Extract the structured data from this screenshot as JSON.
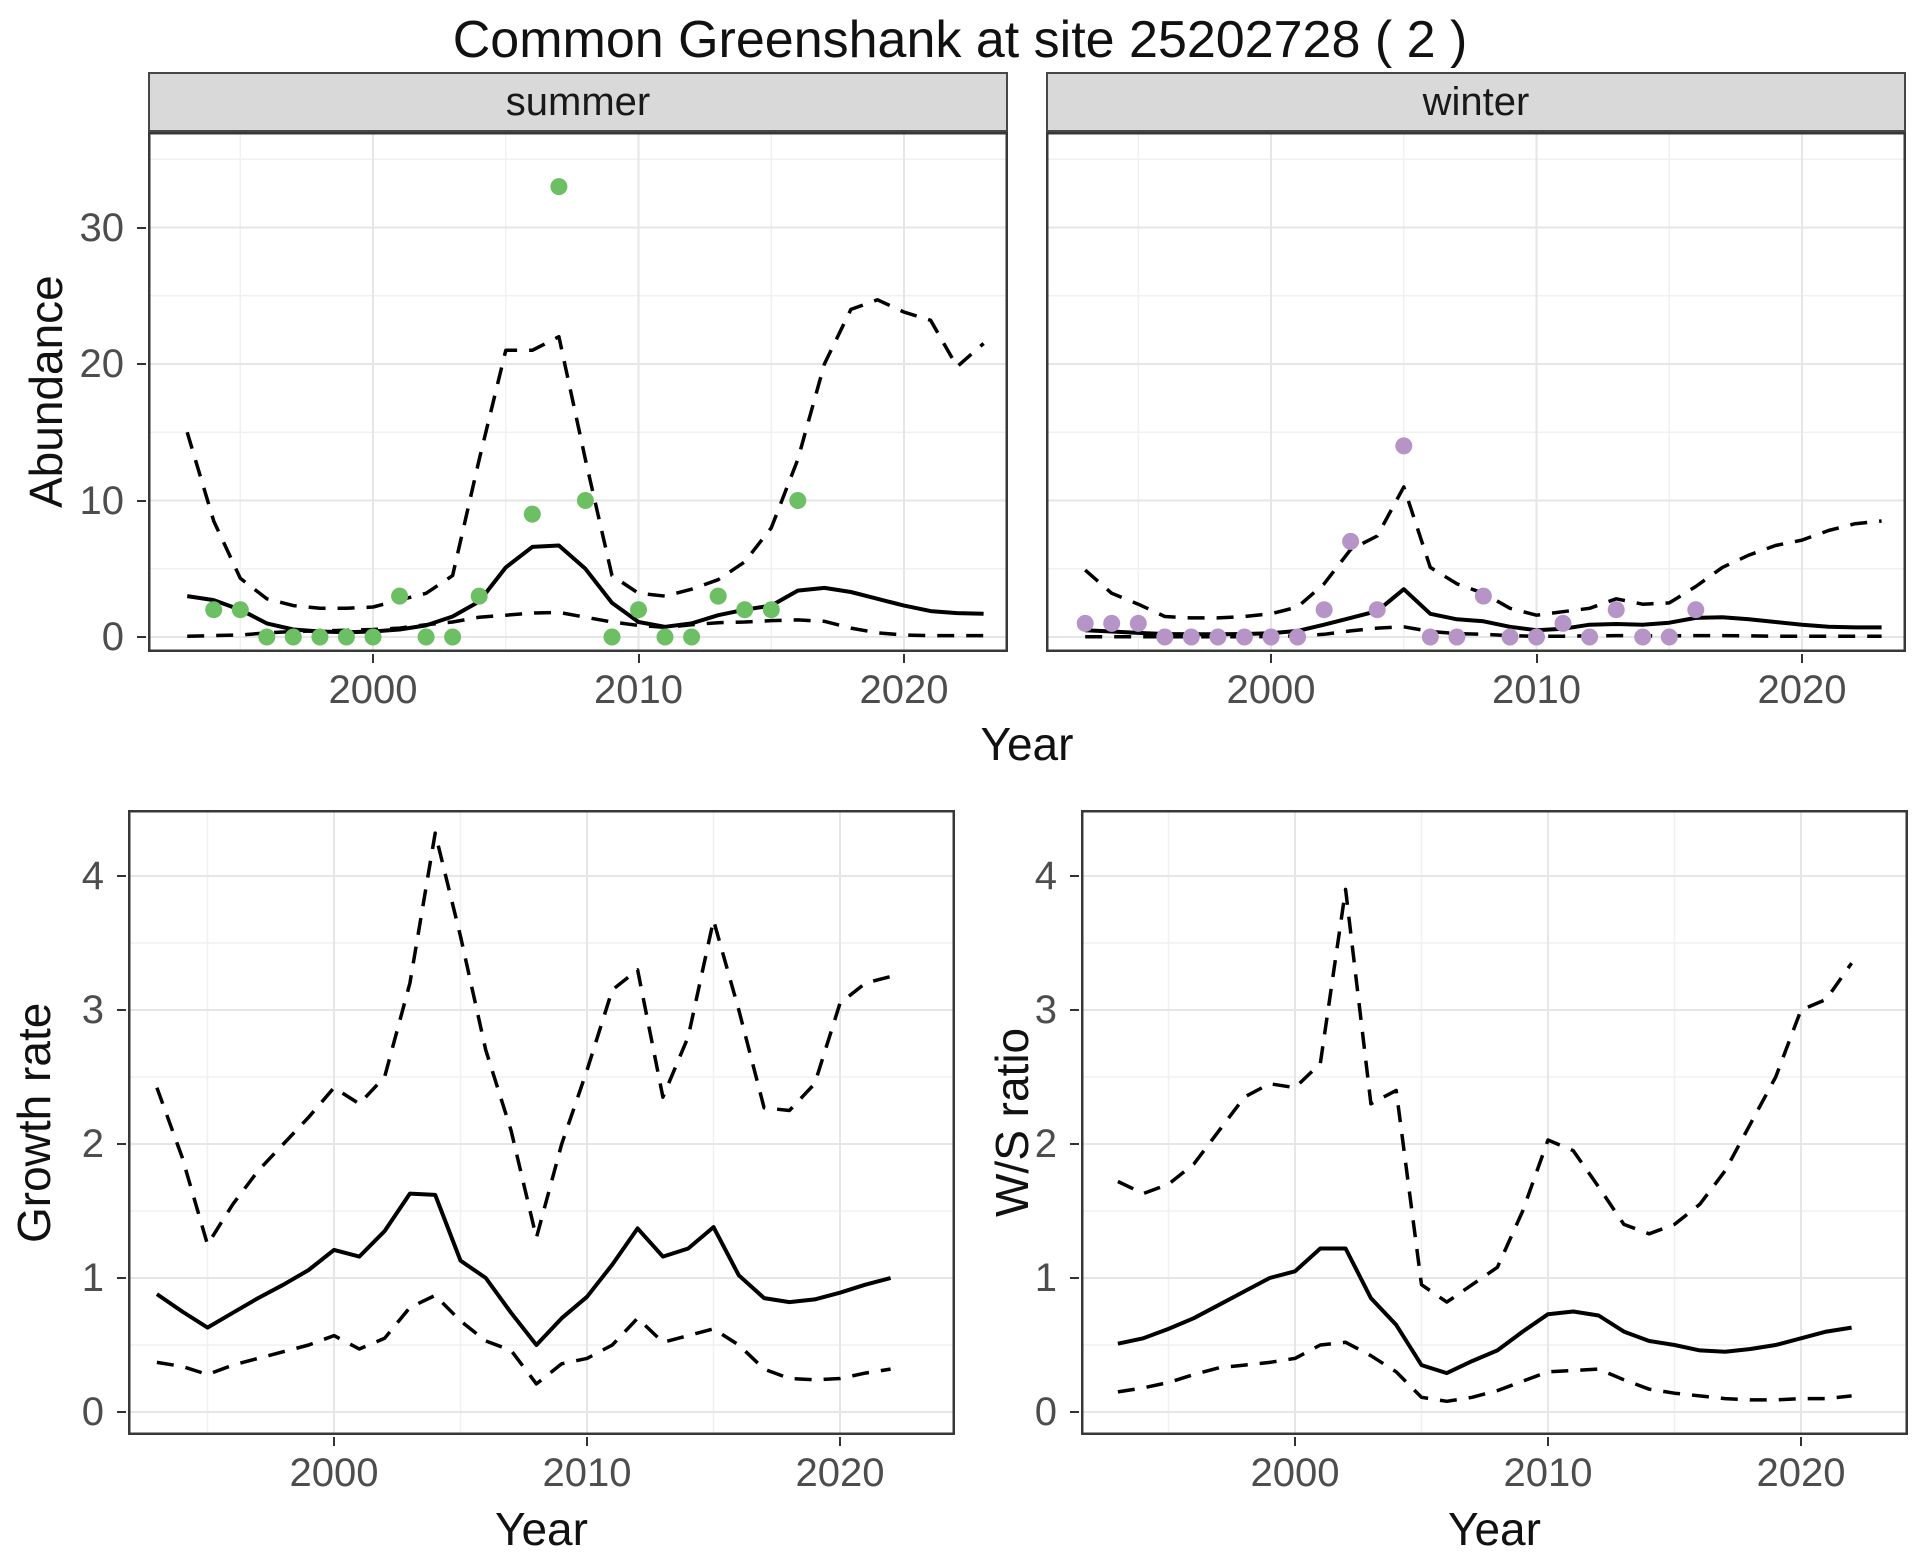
{
  "title": "Common Greenshank at site 25202728 ( 2 )",
  "top_figure": {
    "facets": [
      "summer",
      "winter"
    ],
    "ylabel": "Abundance",
    "xlabel": "Year"
  },
  "bottom_left_figure": {
    "ylabel": "Growth rate",
    "xlabel": "Year"
  },
  "bottom_right_figure": {
    "ylabel": "W/S ratio",
    "xlabel": "Year"
  },
  "colors": {
    "summer_points": "#6cbf63",
    "winter_points": "#b794c7",
    "line": "#000000",
    "strip_background": "#d9d9d9",
    "panel_border": "#383838",
    "grid_major": "#e6e6e6",
    "grid_minor": "#f0f0f0",
    "axis_text": "#4d4d4d"
  },
  "chart_data": [
    {
      "id": "abundance-summer",
      "type": "line",
      "facet_label": "summer",
      "xlabel": "Year",
      "ylabel": "Abundance",
      "x_ticks": [
        2000,
        2010,
        2020
      ],
      "x_minor": [
        1995,
        2005,
        2015
      ],
      "y_ticks": [
        0,
        10,
        20,
        30
      ],
      "y_minor": [
        5,
        15,
        25,
        35
      ],
      "xlim": [
        1991.5,
        2024.4
      ],
      "ylim": [
        -1.8,
        37
      ],
      "x": [
        1993,
        1994,
        1995,
        1996,
        1997,
        1998,
        1999,
        2000,
        2001,
        2002,
        2003,
        2004,
        2005,
        2006,
        2007,
        2008,
        2009,
        2010,
        2011,
        2012,
        2013,
        2014,
        2015,
        2016,
        2017,
        2018,
        2019,
        2020,
        2021,
        2022,
        2023
      ],
      "series": [
        {
          "name": "estimate",
          "style": "solid",
          "values": [
            3.0,
            2.7,
            2.0,
            1.0,
            0.55,
            0.4,
            0.35,
            0.4,
            0.55,
            0.85,
            1.5,
            2.6,
            5.1,
            6.6,
            6.7,
            5.0,
            2.5,
            1.1,
            0.75,
            1.0,
            1.6,
            2.0,
            2.3,
            3.4,
            3.6,
            3.3,
            2.8,
            2.3,
            1.9,
            1.75,
            1.7
          ]
        },
        {
          "name": "upper_95ci",
          "style": "dashed",
          "values": [
            15,
            8.5,
            4.3,
            2.8,
            2.3,
            2.1,
            2.1,
            2.2,
            2.7,
            3.2,
            4.5,
            13,
            21,
            21,
            22,
            13,
            4.5,
            3.2,
            3.0,
            3.5,
            4.2,
            5.5,
            8,
            13,
            20,
            24,
            24.7,
            23.8,
            23.2,
            19.8,
            21.5
          ]
        },
        {
          "name": "lower_95ci",
          "style": "dashed",
          "values": [
            0.05,
            0.1,
            0.15,
            0.3,
            0.4,
            0.45,
            0.5,
            0.55,
            0.65,
            0.9,
            1.1,
            1.45,
            1.6,
            1.75,
            1.8,
            1.45,
            1.1,
            0.85,
            0.7,
            0.9,
            1.05,
            1.1,
            1.2,
            1.25,
            1.15,
            0.65,
            0.3,
            0.15,
            0.1,
            0.1,
            0.1
          ]
        }
      ],
      "points": {
        "name": "observed_counts",
        "color": "#6cbf63",
        "data": [
          [
            1994,
            2
          ],
          [
            1995,
            2
          ],
          [
            1996,
            0
          ],
          [
            1997,
            0
          ],
          [
            1998,
            0
          ],
          [
            1999,
            0
          ],
          [
            2000,
            0
          ],
          [
            2001,
            3
          ],
          [
            2002,
            0
          ],
          [
            2003,
            0
          ],
          [
            2004,
            3
          ],
          [
            2006,
            9
          ],
          [
            2007,
            33
          ],
          [
            2008,
            10
          ],
          [
            2009,
            0
          ],
          [
            2010,
            2
          ],
          [
            2011,
            0
          ],
          [
            2012,
            0
          ],
          [
            2013,
            3
          ],
          [
            2014,
            2
          ],
          [
            2015,
            2
          ],
          [
            2016,
            10
          ]
        ]
      }
    },
    {
      "id": "abundance-winter",
      "type": "line",
      "facet_label": "winter",
      "xlabel": "Year",
      "ylabel": "Abundance",
      "x_ticks": [
        2000,
        2010,
        2020
      ],
      "x_minor": [
        1995,
        2005,
        2015
      ],
      "y_ticks": [
        0,
        10,
        20,
        30
      ],
      "y_minor": [
        5,
        15,
        25,
        35
      ],
      "xlim": [
        1991.5,
        2024.4
      ],
      "ylim": [
        -1.8,
        37
      ],
      "x": [
        1993,
        1994,
        1995,
        1996,
        1997,
        1998,
        1999,
        2000,
        2001,
        2002,
        2003,
        2004,
        2005,
        2006,
        2007,
        2008,
        2009,
        2010,
        2011,
        2012,
        2013,
        2014,
        2015,
        2016,
        2017,
        2018,
        2019,
        2020,
        2021,
        2022,
        2023
      ],
      "series": [
        {
          "name": "estimate",
          "style": "solid",
          "values": [
            0.5,
            0.4,
            0.3,
            0.22,
            0.2,
            0.2,
            0.22,
            0.28,
            0.45,
            0.9,
            1.4,
            1.9,
            3.5,
            1.7,
            1.3,
            1.15,
            0.75,
            0.5,
            0.6,
            0.9,
            0.95,
            0.9,
            1.05,
            1.4,
            1.45,
            1.3,
            1.1,
            0.9,
            0.75,
            0.7,
            0.7
          ]
        },
        {
          "name": "upper_95ci",
          "style": "dashed",
          "values": [
            4.9,
            3.2,
            2.4,
            1.5,
            1.4,
            1.4,
            1.5,
            1.7,
            2.2,
            3.9,
            6.4,
            7.4,
            11,
            5.1,
            3.9,
            3.2,
            2.1,
            1.6,
            1.85,
            2.1,
            2.8,
            2.4,
            2.5,
            3.7,
            5.1,
            6.0,
            6.7,
            7.1,
            7.8,
            8.3,
            8.5
          ]
        },
        {
          "name": "lower_95ci",
          "style": "dashed",
          "values": [
            0.02,
            0.02,
            0.02,
            0.02,
            0.02,
            0.02,
            0.02,
            0.03,
            0.08,
            0.2,
            0.45,
            0.65,
            0.75,
            0.4,
            0.25,
            0.2,
            0.1,
            0.05,
            0.06,
            0.08,
            0.1,
            0.08,
            0.08,
            0.1,
            0.1,
            0.08,
            0.06,
            0.05,
            0.05,
            0.05,
            0.05
          ]
        }
      ],
      "points": {
        "name": "observed_counts",
        "color": "#b794c7",
        "data": [
          [
            1993,
            1
          ],
          [
            1994,
            1
          ],
          [
            1995,
            1
          ],
          [
            1996,
            0
          ],
          [
            1997,
            0
          ],
          [
            1998,
            0
          ],
          [
            1999,
            0
          ],
          [
            2000,
            0
          ],
          [
            2001,
            0
          ],
          [
            2002,
            2
          ],
          [
            2003,
            7
          ],
          [
            2004,
            2
          ],
          [
            2005,
            14
          ],
          [
            2006,
            0
          ],
          [
            2007,
            0
          ],
          [
            2008,
            3
          ],
          [
            2009,
            0
          ],
          [
            2010,
            0
          ],
          [
            2011,
            1
          ],
          [
            2012,
            0
          ],
          [
            2013,
            2
          ],
          [
            2014,
            0
          ],
          [
            2015,
            0
          ],
          [
            2016,
            2
          ]
        ]
      }
    },
    {
      "id": "growth-rate",
      "type": "line",
      "xlabel": "Year",
      "ylabel": "Growth rate",
      "x_ticks": [
        2000,
        2010,
        2020
      ],
      "x_minor": [
        1995,
        2005,
        2015
      ],
      "y_ticks": [
        0,
        1,
        2,
        3,
        4
      ],
      "y_minor": [
        0.5,
        1.5,
        2.5,
        3.5
      ],
      "xlim": [
        1991.5,
        2024.2
      ],
      "ylim": [
        -0.05,
        4.5
      ],
      "x": [
        1993,
        1994,
        1995,
        1996,
        1997,
        1998,
        1999,
        2000,
        2001,
        2002,
        2003,
        2004,
        2005,
        2006,
        2007,
        2008,
        2009,
        2010,
        2011,
        2012,
        2013,
        2014,
        2015,
        2016,
        2017,
        2018,
        2019,
        2020,
        2021,
        2022
      ],
      "series": [
        {
          "name": "estimate",
          "style": "solid",
          "values": [
            0.88,
            0.75,
            0.63,
            0.74,
            0.85,
            0.95,
            1.06,
            1.21,
            1.16,
            1.35,
            1.63,
            1.62,
            1.13,
            1.0,
            0.74,
            0.5,
            0.7,
            0.86,
            1.1,
            1.37,
            1.16,
            1.22,
            1.38,
            1.02,
            0.85,
            0.82,
            0.84,
            0.89,
            0.95,
            1.0
          ]
        },
        {
          "name": "upper_95ci",
          "style": "dashed",
          "values": [
            2.42,
            1.9,
            1.25,
            1.55,
            1.8,
            2.0,
            2.2,
            2.42,
            2.3,
            2.5,
            3.2,
            4.32,
            3.55,
            2.7,
            2.1,
            1.3,
            2.0,
            2.55,
            3.15,
            3.3,
            2.35,
            2.8,
            3.67,
            3.0,
            2.27,
            2.25,
            2.45,
            3.05,
            3.2,
            3.25
          ]
        },
        {
          "name": "lower_95ci",
          "style": "dashed",
          "values": [
            0.37,
            0.34,
            0.28,
            0.35,
            0.4,
            0.45,
            0.5,
            0.57,
            0.47,
            0.55,
            0.78,
            0.87,
            0.68,
            0.53,
            0.46,
            0.21,
            0.36,
            0.4,
            0.5,
            0.7,
            0.52,
            0.57,
            0.62,
            0.5,
            0.32,
            0.25,
            0.24,
            0.25,
            0.29,
            0.32
          ]
        }
      ]
    },
    {
      "id": "ws-ratio",
      "type": "line",
      "xlabel": "Year",
      "ylabel": "W/S ratio",
      "x_ticks": [
        2000,
        2010,
        2020
      ],
      "x_minor": [
        1995,
        2005,
        2015
      ],
      "y_ticks": [
        0,
        1,
        2,
        3,
        4
      ],
      "y_minor": [
        0.5,
        1.5,
        2.5,
        3.5
      ],
      "xlim": [
        1991.5,
        2024.2
      ],
      "ylim": [
        -0.05,
        4.5
      ],
      "x": [
        1993,
        1994,
        1995,
        1996,
        1997,
        1998,
        1999,
        2000,
        2001,
        2002,
        2003,
        2004,
        2005,
        2006,
        2007,
        2008,
        2009,
        2010,
        2011,
        2012,
        2013,
        2014,
        2015,
        2016,
        2017,
        2018,
        2019,
        2020,
        2021,
        2022
      ],
      "series": [
        {
          "name": "estimate",
          "style": "solid",
          "values": [
            0.51,
            0.55,
            0.62,
            0.7,
            0.8,
            0.9,
            1.0,
            1.05,
            1.22,
            1.22,
            0.85,
            0.65,
            0.35,
            0.29,
            0.38,
            0.46,
            0.6,
            0.73,
            0.75,
            0.72,
            0.6,
            0.53,
            0.5,
            0.46,
            0.45,
            0.47,
            0.5,
            0.55,
            0.6,
            0.63
          ]
        },
        {
          "name": "upper_95ci",
          "style": "dashed",
          "values": [
            1.72,
            1.63,
            1.7,
            1.85,
            2.1,
            2.35,
            2.45,
            2.42,
            2.6,
            3.9,
            2.3,
            2.4,
            0.95,
            0.82,
            0.95,
            1.08,
            1.5,
            2.03,
            1.95,
            1.68,
            1.4,
            1.33,
            1.4,
            1.55,
            1.8,
            2.15,
            2.5,
            3.0,
            3.08,
            3.35
          ]
        },
        {
          "name": "lower_95ci",
          "style": "dashed",
          "values": [
            0.15,
            0.18,
            0.22,
            0.28,
            0.33,
            0.35,
            0.37,
            0.4,
            0.5,
            0.52,
            0.42,
            0.3,
            0.11,
            0.08,
            0.11,
            0.16,
            0.23,
            0.3,
            0.31,
            0.32,
            0.24,
            0.17,
            0.14,
            0.12,
            0.1,
            0.09,
            0.09,
            0.1,
            0.1,
            0.12
          ]
        }
      ]
    }
  ]
}
